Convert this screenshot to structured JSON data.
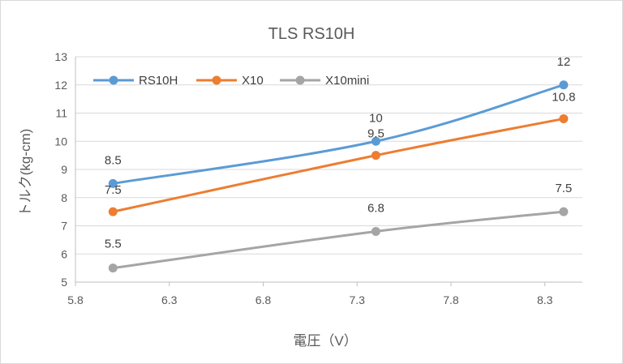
{
  "chart_data": {
    "type": "line",
    "title": "TLS RS10H",
    "xlabel": "電圧（V）",
    "ylabel": "トルク(kg-cm)",
    "xlim": [
      5.8,
      8.5
    ],
    "ylim": [
      5,
      13
    ],
    "x_ticks": [
      "5.8",
      "6.3",
      "6.8",
      "7.3",
      "7.8",
      "8.3"
    ],
    "y_ticks": [
      "5",
      "6",
      "7",
      "8",
      "9",
      "10",
      "11",
      "12",
      "13"
    ],
    "x": [
      6.0,
      7.4,
      8.4
    ],
    "series": [
      {
        "name": "RS10H",
        "color": "#5b9bd5",
        "values": [
          8.5,
          10,
          12
        ],
        "labels": [
          "8.5",
          "10",
          "12"
        ]
      },
      {
        "name": "X10",
        "color": "#ed7d31",
        "values": [
          7.5,
          9.5,
          10.8
        ],
        "labels": [
          "7.5",
          "9.5",
          "10.8"
        ]
      },
      {
        "name": "X10mini",
        "color": "#a5a5a5",
        "values": [
          5.5,
          6.8,
          7.5
        ],
        "labels": [
          "5.5",
          "6.8",
          "7.5"
        ]
      }
    ],
    "grid": "horizontal",
    "legend_position": "top-left"
  }
}
